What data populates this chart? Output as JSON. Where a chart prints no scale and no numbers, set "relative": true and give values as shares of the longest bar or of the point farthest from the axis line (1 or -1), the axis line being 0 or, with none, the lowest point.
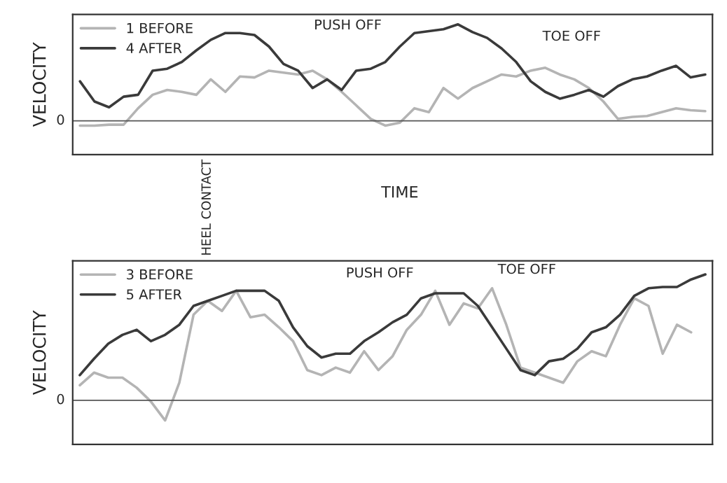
{
  "chart_data": [
    {
      "type": "line",
      "ylabel": "VELOCITY",
      "relative": true,
      "legend": "top left",
      "grid": false,
      "categories": [
        null,
        null,
        null,
        null,
        null,
        null,
        null,
        null,
        null,
        null,
        null,
        null,
        null,
        null,
        null,
        null,
        null,
        null,
        null,
        null,
        null,
        null,
        null,
        null,
        null,
        null,
        null,
        null,
        null,
        null,
        null,
        null,
        null,
        null,
        null,
        null,
        null,
        null,
        null,
        null,
        null,
        null,
        null,
        null
      ],
      "series": [
        {
          "name": "1 BEFORE",
          "color": "#b4b4b4",
          "values": [
            -0.05,
            -0.05,
            -0.04,
            -0.04,
            0.13,
            0.27,
            0.32,
            0.3,
            0.27,
            0.43,
            0.3,
            0.46,
            0.45,
            0.52,
            0.5,
            0.48,
            0.52,
            0.43,
            0.3,
            0.16,
            0.02,
            -0.05,
            -0.02,
            0.13,
            0.09,
            0.34,
            0.23,
            0.34,
            0.41,
            0.48,
            0.46,
            0.52,
            0.55,
            0.48,
            0.43,
            0.34,
            0.2,
            0.02,
            0.04,
            0.05,
            0.09,
            0.13,
            0.11,
            0.1
          ]
        },
        {
          "name": "4 AFTER",
          "color": "#3a3a3a",
          "values": [
            0.41,
            0.2,
            0.14,
            0.25,
            0.27,
            0.52,
            0.54,
            0.61,
            0.73,
            0.84,
            0.91,
            0.91,
            0.89,
            0.77,
            0.59,
            0.52,
            0.34,
            0.43,
            0.32,
            0.52,
            0.54,
            0.61,
            0.77,
            0.91,
            0.93,
            0.95,
            1.0,
            0.92,
            0.86,
            0.75,
            0.61,
            0.41,
            0.3,
            0.23,
            0.27,
            0.32,
            0.25,
            0.36,
            0.43,
            0.46,
            0.52,
            0.57,
            0.45,
            0.48
          ]
        }
      ],
      "annotations": [
        "PUSH OFF",
        "TOE OFF",
        "0",
        "TIME",
        "HEEL CONTACT"
      ]
    },
    {
      "type": "line",
      "ylabel": "VELOCITY",
      "relative": true,
      "legend": "top left",
      "grid": false,
      "categories": [
        null,
        null,
        null,
        null,
        null,
        null,
        null,
        null,
        null,
        null,
        null,
        null,
        null,
        null,
        null,
        null,
        null,
        null,
        null,
        null,
        null,
        null,
        null,
        null,
        null,
        null,
        null,
        null,
        null,
        null,
        null,
        null,
        null,
        null,
        null,
        null,
        null,
        null,
        null,
        null,
        null,
        null,
        null,
        null,
        null
      ],
      "series": [
        {
          "name": "3 BEFORE",
          "color": "#b4b4b4",
          "values": [
            0.12,
            0.22,
            0.18,
            0.18,
            0.1,
            -0.01,
            -0.16,
            0.14,
            0.68,
            0.79,
            0.71,
            0.87,
            0.66,
            0.68,
            0.58,
            0.47,
            0.24,
            0.2,
            0.26,
            0.22,
            0.39,
            0.24,
            0.35,
            0.56,
            0.68,
            0.87,
            0.6,
            0.77,
            0.73,
            0.89,
            0.6,
            0.26,
            0.22,
            0.18,
            0.14,
            0.31,
            0.39,
            0.35,
            0.6,
            0.81,
            0.75,
            0.37,
            0.6,
            0.54,
            null
          ]
        },
        {
          "name": "5 AFTER",
          "color": "#3a3a3a",
          "values": [
            0.2,
            0.33,
            0.45,
            0.52,
            0.56,
            0.47,
            0.52,
            0.6,
            0.75,
            0.79,
            0.83,
            0.87,
            0.87,
            0.87,
            0.79,
            0.58,
            0.43,
            0.34,
            0.37,
            0.37,
            0.47,
            0.54,
            0.62,
            0.68,
            0.81,
            0.85,
            0.85,
            0.85,
            0.75,
            0.58,
            0.41,
            0.24,
            0.2,
            0.31,
            0.33,
            0.41,
            0.54,
            0.58,
            0.68,
            0.83,
            0.89,
            0.9,
            0.9,
            0.96,
            1.0
          ]
        }
      ],
      "annotations": [
        "PUSH OFF",
        "TOE OFF",
        "0"
      ]
    }
  ]
}
